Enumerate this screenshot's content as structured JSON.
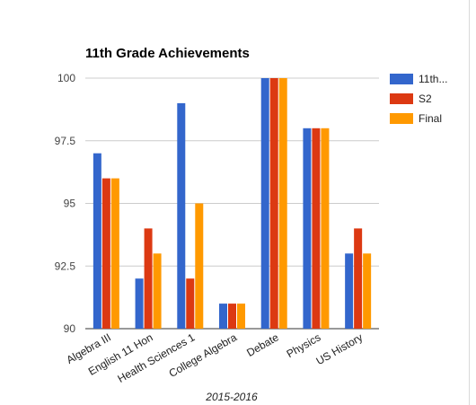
{
  "chart_data": {
    "type": "bar",
    "title": "11th Grade Achievements",
    "xlabel": "2015-2016",
    "ylabel": "",
    "categories": [
      "Algebra III",
      "English 11 Hon",
      "Health Sciences 1",
      "College Algebra",
      "Debate",
      "Physics",
      "US History"
    ],
    "ylim": [
      90,
      100
    ],
    "yticks": [
      "90",
      "92.5",
      "95",
      "97.5",
      "100"
    ],
    "ytick_values": [
      90,
      92.5,
      95,
      97.5,
      100
    ],
    "grid": true,
    "legend_position": "right",
    "series": [
      {
        "name": "11th...",
        "color": "#3366cc",
        "values": [
          97,
          92,
          99,
          91,
          100,
          98,
          93
        ]
      },
      {
        "name": "S2",
        "color": "#dc3912",
        "values": [
          96,
          94,
          92,
          91,
          100,
          98,
          94
        ]
      },
      {
        "name": "Final",
        "color": "#ff9900",
        "values": [
          96,
          93,
          95,
          91,
          100,
          98,
          93
        ]
      }
    ]
  }
}
